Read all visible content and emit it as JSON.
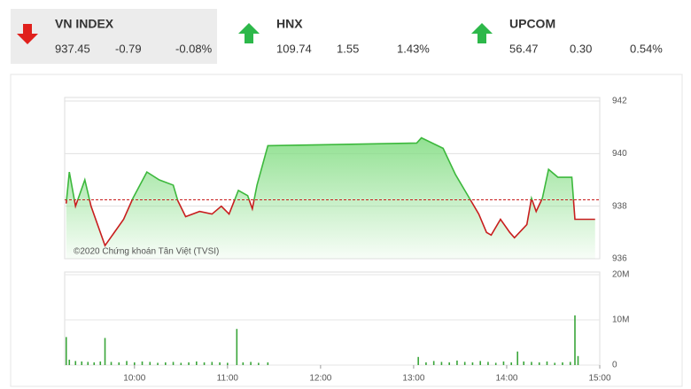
{
  "indices": [
    {
      "name": "VN INDEX",
      "value": "937.45",
      "change": "-0.79",
      "percent": "-0.08%",
      "color": "#e0201c",
      "background": "#ececec"
    },
    {
      "name": "HNX",
      "value": "109.74",
      "change": "1.55",
      "percent": "1.43%",
      "color": "#2db84a",
      "background": "#ffffff"
    },
    {
      "name": "UPCOM",
      "value": "56.47",
      "change": "0.30",
      "percent": "0.54%",
      "color": "#2db84a",
      "background": "#ffffff"
    }
  ],
  "chart_data": [
    {
      "type": "line",
      "annotation": "©2020 Chứng khoán Tân Việt (TVSI)",
      "x": [
        556,
        558,
        562,
        568,
        572,
        581,
        593,
        599,
        608,
        616,
        625,
        628,
        633,
        642,
        650,
        656,
        661,
        667,
        673,
        676,
        679,
        686,
        782,
        785,
        799,
        807,
        813,
        816,
        822,
        827,
        830,
        836,
        842,
        845,
        853,
        856,
        859,
        863,
        867,
        873,
        882,
        884,
        897
      ],
      "values": [
        938.1,
        939.3,
        938.0,
        939.0,
        938.0,
        936.5,
        937.5,
        938.3,
        939.3,
        939.0,
        938.8,
        938.2,
        937.6,
        937.8,
        937.7,
        938.0,
        937.7,
        938.6,
        938.4,
        937.9,
        938.8,
        940.3,
        940.4,
        940.6,
        940.2,
        939.2,
        938.6,
        938.3,
        937.7,
        937.0,
        936.9,
        937.5,
        937.0,
        936.8,
        937.3,
        938.3,
        937.8,
        938.3,
        939.4,
        939.1,
        939.1,
        937.5,
        937.5
      ],
      "reference_line": 938.24,
      "up_color": "#3cb83c",
      "down_color": "#c81e1e",
      "fill_color": "#7fdc7f",
      "reference_color": "#c81e1e",
      "xlim": [
        555,
        900
      ],
      "ylim": [
        936,
        942
      ],
      "yticks": [
        936,
        938,
        940,
        942
      ],
      "grid": true
    },
    {
      "type": "bar",
      "color": "#3aa53a",
      "x": [
        556,
        558,
        562,
        566,
        570,
        574,
        578,
        581,
        585,
        590,
        595,
        600,
        605,
        610,
        615,
        620,
        625,
        630,
        635,
        640,
        645,
        650,
        655,
        660,
        666,
        670,
        675,
        680,
        686,
        783,
        788,
        793,
        798,
        803,
        808,
        813,
        818,
        823,
        828,
        833,
        838,
        843,
        847,
        851,
        856,
        861,
        866,
        871,
        876,
        881,
        884,
        886
      ],
      "values": [
        6200000,
        1200000,
        900000,
        800000,
        700000,
        600000,
        800000,
        6000000,
        700000,
        600000,
        900000,
        600000,
        800000,
        700000,
        500000,
        600000,
        700000,
        500000,
        600000,
        800000,
        600000,
        700000,
        600000,
        500000,
        8000000,
        600000,
        700000,
        500000,
        600000,
        1800000,
        600000,
        900000,
        700000,
        600000,
        1000000,
        700000,
        600000,
        900000,
        700000,
        500000,
        800000,
        600000,
        3000000,
        800000,
        700000,
        600000,
        800000,
        500000,
        600000,
        700000,
        11000000,
        2000000
      ],
      "xlim": [
        555,
        900
      ],
      "xticks": [
        {
          "value": 600,
          "label": "10:00"
        },
        {
          "value": 660,
          "label": "11:00"
        },
        {
          "value": 720,
          "label": "12:00"
        },
        {
          "value": 780,
          "label": "13:00"
        },
        {
          "value": 840,
          "label": "14:00"
        },
        {
          "value": 900,
          "label": "15:00"
        }
      ],
      "ylim": [
        0,
        20000000
      ],
      "yticks": [
        0,
        {
          "value": 10000000,
          "label": "10M"
        },
        {
          "value": 20000000,
          "label": "20M"
        }
      ],
      "grid": true
    }
  ]
}
